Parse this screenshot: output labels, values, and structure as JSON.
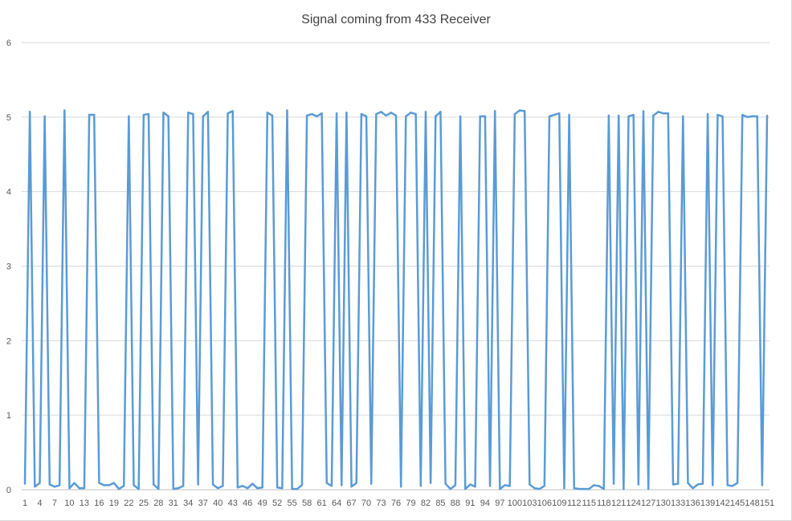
{
  "chart_data": {
    "type": "line",
    "title": "Signal coming from 433 Receiver",
    "xlabel": "",
    "ylabel": "",
    "ylim": [
      0,
      6
    ],
    "yticks": [
      "0",
      "1",
      "2",
      "3",
      "4",
      "5",
      "6"
    ],
    "grid": true,
    "legend": "none",
    "line_color": "#5b9bd5",
    "xticks": [
      "1",
      "4",
      "7",
      "10",
      "13",
      "16",
      "19",
      "22",
      "25",
      "28",
      "31",
      "34",
      "37",
      "40",
      "43",
      "46",
      "49",
      "52",
      "55",
      "58",
      "61",
      "64",
      "67",
      "70",
      "73",
      "76",
      "79",
      "82",
      "85",
      "88",
      "91",
      "94",
      "97",
      "100",
      "103",
      "106",
      "109",
      "112",
      "115",
      "118",
      "121",
      "124",
      "127",
      "130",
      "133",
      "136",
      "139",
      "142",
      "145",
      "148",
      "151"
    ],
    "x": [
      1,
      2,
      3,
      4,
      5,
      6,
      7,
      8,
      9,
      10,
      11,
      12,
      13,
      14,
      15,
      16,
      17,
      18,
      19,
      20,
      21,
      22,
      23,
      24,
      25,
      26,
      27,
      28,
      29,
      30,
      31,
      32,
      33,
      34,
      35,
      36,
      37,
      38,
      39,
      40,
      41,
      42,
      43,
      44,
      45,
      46,
      47,
      48,
      49,
      50,
      51,
      52,
      53,
      54,
      55,
      56,
      57,
      58,
      59,
      60,
      61,
      62,
      63,
      64,
      65,
      66,
      67,
      68,
      69,
      70,
      71,
      72,
      73,
      74,
      75,
      76,
      77,
      78,
      79,
      80,
      81,
      82,
      83,
      84,
      85,
      86,
      87,
      88,
      89,
      90,
      91,
      92,
      93,
      94,
      95,
      96,
      97,
      98,
      99,
      100,
      101,
      102,
      103,
      104,
      105,
      106,
      107,
      108,
      109,
      110,
      111,
      112,
      113,
      114,
      115,
      116,
      117,
      118,
      119,
      120,
      121,
      122,
      123,
      124,
      125,
      126,
      127,
      128,
      129,
      130,
      131,
      132,
      133,
      134,
      135,
      136,
      137,
      138,
      139,
      140,
      141,
      142,
      143,
      144,
      145,
      146,
      147,
      148,
      149,
      150,
      151
    ],
    "values": [
      0.08,
      5.07,
      0.04,
      0.09,
      5.01,
      0.07,
      0.04,
      0.06,
      5.09,
      0.02,
      0.09,
      0.02,
      0.02,
      5.03,
      5.03,
      0.09,
      0.06,
      0.06,
      0.09,
      0.01,
      0.05,
      5.01,
      0.06,
      0.01,
      5.03,
      5.04,
      0.07,
      0.01,
      5.06,
      5.01,
      0.01,
      0.02,
      0.05,
      5.06,
      5.04,
      0.07,
      5.01,
      5.07,
      0.07,
      0.02,
      0.05,
      5.05,
      5.08,
      0.03,
      0.05,
      0.02,
      0.08,
      0.02,
      0.03,
      5.06,
      5.02,
      0.03,
      0.02,
      5.09,
      0.01,
      0.01,
      0.06,
      5.02,
      5.04,
      5.01,
      5.05,
      0.09,
      0.05,
      5.05,
      0.06,
      5.06,
      0.04,
      0.09,
      5.04,
      5.01,
      0.08,
      5.04,
      5.07,
      5.02,
      5.06,
      5.02,
      0.04,
      5.01,
      5.06,
      5.04,
      0.05,
      5.07,
      0.09,
      5.01,
      5.07,
      0.08,
      0.01,
      0.06,
      5.01,
      0.01,
      0.07,
      0.04,
      5.01,
      5.01,
      0.05,
      5.08,
      0.01,
      0.06,
      0.05,
      5.04,
      5.09,
      5.08,
      0.07,
      0.02,
      0.01,
      0.05,
      5.01,
      5.03,
      5.05,
      0.02,
      5.03,
      0.02,
      0.01,
      0.01,
      0.01,
      0.06,
      0.05,
      0.01,
      5.02,
      0.08,
      5.02,
      0.01,
      5.01,
      5.03,
      0.07,
      5.08,
      0.01,
      5.02,
      5.07,
      5.05,
      5.05,
      0.07,
      0.08,
      5.01,
      0.09,
      0.02,
      0.07,
      0.08,
      5.04,
      0.06,
      5.03,
      5.01,
      0.06,
      0.05,
      0.09,
      5.03,
      5.0,
      5.01,
      5.01,
      0.06,
      5.02
    ]
  }
}
